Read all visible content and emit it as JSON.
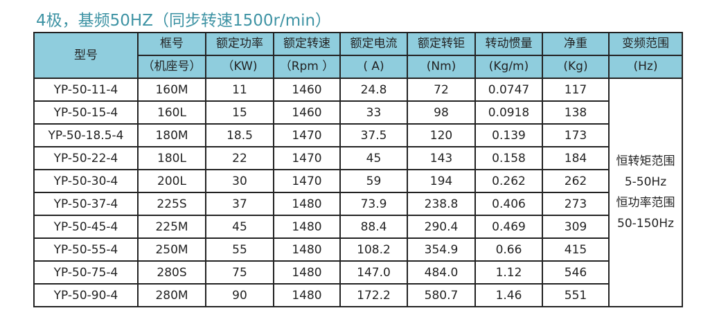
{
  "title": "4极，基频50HZ（同步转速1500r/min）",
  "headers": [
    {
      "l1": "型号",
      "l2": ""
    },
    {
      "l1": "框号",
      "l2": "（机座号）"
    },
    {
      "l1": "额定功率",
      "l2": "（KW)"
    },
    {
      "l1": "额定转速",
      "l2": "（Rpm ）"
    },
    {
      "l1": "额定电流",
      "l2": "( A)"
    },
    {
      "l1": "额定转钜",
      "l2": "(Nm)"
    },
    {
      "l1": "转动惯量",
      "l2": "(Kg/m)"
    },
    {
      "l1": "净重",
      "l2": "(Kg)"
    },
    {
      "l1": "变频范围",
      "l2": "(Hz)"
    }
  ],
  "rows": [
    [
      "YP-50-11-4",
      "160M",
      "11",
      "1460",
      "24.8",
      "72",
      "0.0747",
      "117"
    ],
    [
      "YP-50-15-4",
      "160L",
      "15",
      "1460",
      "33",
      "98",
      "0.0918",
      "138"
    ],
    [
      "YP-50-18.5-4",
      "180M",
      "18.5",
      "1470",
      "37.5",
      "120",
      "0.139",
      "173"
    ],
    [
      "YP-50-22-4",
      "180L",
      "22",
      "1470",
      "45",
      "143",
      "0.158",
      "184"
    ],
    [
      "YP-50-30-4",
      "200L",
      "30",
      "1470",
      "59",
      "194",
      "0.262",
      "262"
    ],
    [
      "YP-50-37-4",
      "225S",
      "37",
      "1480",
      "73.9",
      "238.8",
      "0.406",
      "273"
    ],
    [
      "YP-50-45-4",
      "225M",
      "45",
      "1480",
      "88.4",
      "290.4",
      "0.469",
      "309"
    ],
    [
      "YP-50-55-4",
      "250M",
      "55",
      "1480",
      "108.2",
      "354.9",
      "0.66",
      "415"
    ],
    [
      "YP-50-75-4",
      "280S",
      "75",
      "1480",
      "147.0",
      "484.0",
      "1.12",
      "546"
    ],
    [
      "YP-50-90-4",
      "280M",
      "90",
      "1480",
      "172.2",
      "580.7",
      "1.46",
      "551"
    ]
  ],
  "range": [
    "恒转矩范围",
    "5-50Hz",
    "恒功率范围",
    "50-150Hz"
  ]
}
